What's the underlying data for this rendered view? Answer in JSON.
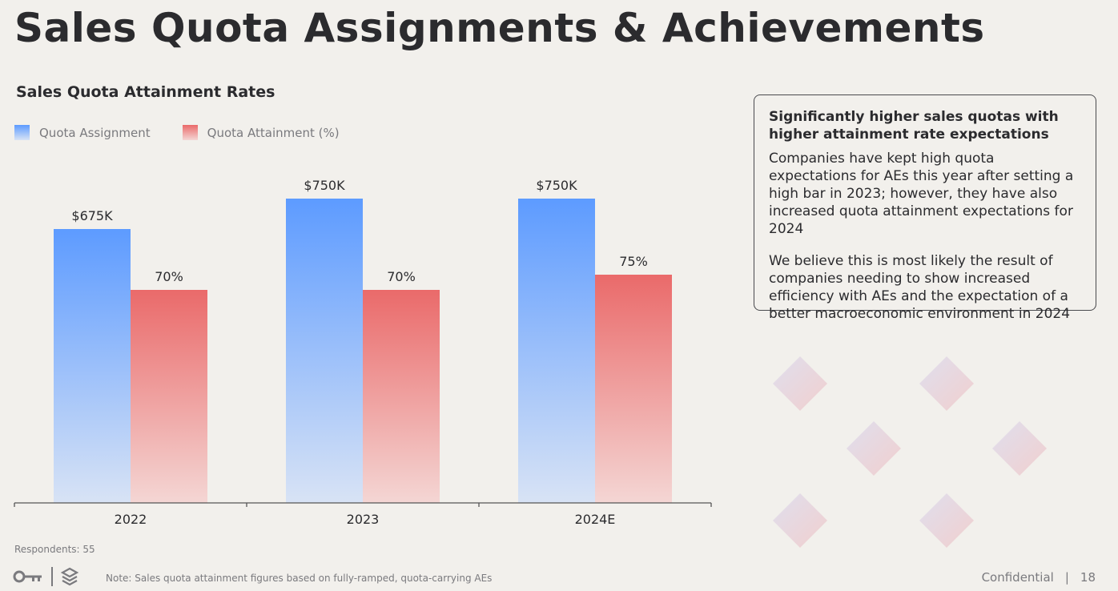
{
  "page": {
    "title": "Sales Quota Assignments & Achievements",
    "respondents": "Respondents: 55",
    "note": "Note: Sales quota attainment figures based on fully-ramped, quota-carrying AEs",
    "confidential": "Confidential",
    "separator": "|",
    "page_number": "18"
  },
  "insight": {
    "heading": "Significantly higher sales quotas with higher attainment rate expectations",
    "paragraphs": [
      "Companies have kept high quota expectations for AEs this year after setting a high bar in 2023; however, they have also increased quota attainment expectations for 2024",
      "We believe this is most likely the result of companies needing to show increased efficiency with AEs and the expectation of a better macroeconomic environment in 2024"
    ]
  },
  "colors": {
    "quota_top": "#5d9bff",
    "quota_bottom": "#d8e3f5",
    "attain_top": "#ea6a6a",
    "attain_bottom": "#f4d6d4",
    "axis": "#555555",
    "text": "#2b2b2e",
    "muted": "#7a7a7e"
  },
  "chart_data": {
    "type": "bar",
    "title": "Sales Quota Attainment Rates",
    "categories": [
      "2022",
      "2023",
      "2024E"
    ],
    "series": [
      {
        "name": "Quota Assignment",
        "values": [
          675,
          750,
          750
        ],
        "labels": [
          "$675K",
          "$750K",
          "$750K"
        ]
      },
      {
        "name": "Quota Attainment (%)",
        "values": [
          70,
          70,
          75
        ],
        "labels": [
          "70%",
          "70%",
          "75%"
        ]
      }
    ],
    "legend": "top-left",
    "grid": false
  }
}
